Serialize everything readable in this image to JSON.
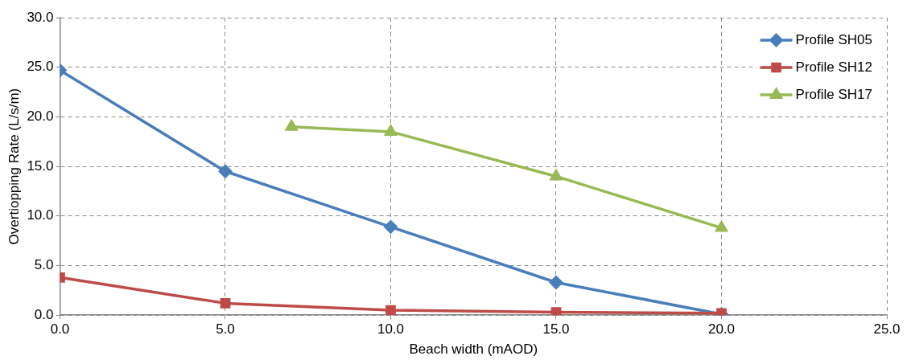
{
  "chart_data": {
    "type": "line",
    "xlabel": "Beach width (mAOD)",
    "ylabel": "Overtiopping Rate (L/s/m)",
    "xlim": [
      0,
      25
    ],
    "xticks": [
      {
        "value": 0,
        "label": "0.0"
      },
      {
        "value": 5,
        "label": "5.0"
      },
      {
        "value": 10,
        "label": "10.0"
      },
      {
        "value": 15,
        "label": "15.0"
      },
      {
        "value": 20,
        "label": "20.0"
      },
      {
        "value": 25,
        "label": "25.0"
      }
    ],
    "ylim": [
      0,
      30
    ],
    "yticks": [
      {
        "value": 0,
        "label": "0.0"
      },
      {
        "value": 5,
        "label": "5.0"
      },
      {
        "value": 10,
        "label": "10.0"
      },
      {
        "value": 15,
        "label": "15.0"
      },
      {
        "value": 20,
        "label": "20.0"
      },
      {
        "value": 25,
        "label": "25.0"
      },
      {
        "value": 30,
        "label": "30.0"
      }
    ],
    "grid": true,
    "legend": "top right",
    "line_style": "solid",
    "series": [
      {
        "name": "Profile SH05",
        "color": "#4a7ebb",
        "marker": "diamond",
        "x": [
          0,
          5,
          10,
          15,
          20
        ],
        "values": [
          24.7,
          14.5,
          8.9,
          3.3,
          0.1
        ]
      },
      {
        "name": "Profile SH12",
        "color": "#be4b48",
        "marker": "square",
        "x": [
          0,
          5,
          10,
          15,
          20
        ],
        "values": [
          3.8,
          1.2,
          0.5,
          0.3,
          0.2
        ]
      },
      {
        "name": "Profile SH17",
        "color": "#98b954",
        "marker": "triangle",
        "x": [
          7,
          10,
          15,
          20
        ],
        "values": [
          19.0,
          18.5,
          14.0,
          8.8
        ]
      }
    ]
  }
}
